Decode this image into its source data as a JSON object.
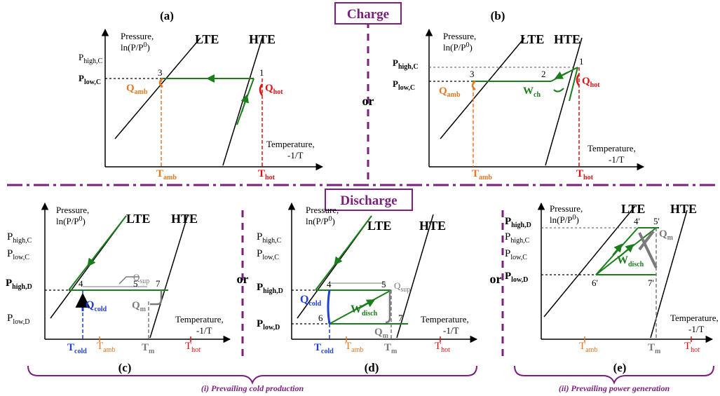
{
  "headers": {
    "charge": "Charge",
    "discharge": "Discharge",
    "or": "or"
  },
  "captions": {
    "cold": "(i) Prevailing cold production",
    "power": "(ii) Prevailing power generation"
  },
  "axis": {
    "pressure": "Pressure,",
    "pressure_unit": "ln(P/P",
    "pressure_sup": "0",
    "pressure_close": ")",
    "temperature": "Temperature,",
    "temperature_unit": "-1/T"
  },
  "lines": {
    "lte": "LTE",
    "hte": "HTE"
  },
  "panels": {
    "a": {
      "title": "(a)",
      "p_high": "P",
      "p_high_sub": "high,C",
      "p_low": "P",
      "p_low_sub": "low,C",
      "q_amb": "Q",
      "q_amb_sub": "amb",
      "q_hot": "Q",
      "q_hot_sub": "hot",
      "t_amb": "T",
      "t_amb_sub": "amb",
      "t_hot": "T",
      "t_hot_sub": "hot",
      "pt1": "1",
      "pt3": "3"
    },
    "b": {
      "title": "(b)",
      "p_high": "P",
      "p_high_sub": "high,C",
      "p_low": "P",
      "p_low_sub": "low,C",
      "q_amb": "Q",
      "q_amb_sub": "amb",
      "q_hot": "Q",
      "q_hot_sub": "hot",
      "w_ch": "W",
      "w_ch_sub": "ch",
      "t_amb": "T",
      "t_amb_sub": "amb",
      "t_hot": "T",
      "t_hot_sub": "hot",
      "pt1": "1",
      "pt2": "2",
      "pt3": "3"
    },
    "c": {
      "title": "(c)",
      "p_high_c": "P",
      "p_high_c_sub": "high,C",
      "p_low_c": "P",
      "p_low_c_sub": "low,C",
      "p_high_d": "P",
      "p_high_d_sub": "high,D",
      "p_low_d": "P",
      "p_low_d_sub": "low,D",
      "q_cold": "Q",
      "q_cold_sub": "cold",
      "q_sup": "Q",
      "q_sup_sub": "sup",
      "q_m": "Q",
      "q_m_sub": "m",
      "t_cold": "T",
      "t_cold_sub": "cold",
      "t_amb": "T",
      "t_amb_sub": "amb",
      "t_m": "T",
      "t_m_sub": "m",
      "t_hot": "T",
      "t_hot_sub": "hot",
      "pt4": "4",
      "pt5": "5",
      "pt7": "7"
    },
    "d": {
      "title": "(d)",
      "p_high_c": "P",
      "p_high_c_sub": "high,C",
      "p_low_c": "P",
      "p_low_c_sub": "low,C",
      "p_high_d": "P",
      "p_high_d_sub": "high,D",
      "p_low_d": "P",
      "p_low_d_sub": "low,D",
      "q_cold": "Q",
      "q_cold_sub": "cold",
      "q_sup": "Q",
      "q_sup_sub": "sup",
      "q_m": "Q",
      "q_m_sub": "m",
      "w_disch": "W",
      "w_disch_sub": "disch",
      "t_cold": "T",
      "t_cold_sub": "cold",
      "t_amb": "T",
      "t_amb_sub": "amb",
      "t_m": "T",
      "t_m_sub": "m",
      "t_hot": "T",
      "t_hot_sub": "hot",
      "pt4": "4",
      "pt5": "5",
      "pt6": "6",
      "pt7": "7"
    },
    "e": {
      "title": "(e)",
      "p_high_d": "P",
      "p_high_d_sub": "high,D",
      "p_high_c": "P",
      "p_high_c_sub": "high,C",
      "p_low_c": "P",
      "p_low_c_sub": "low,C",
      "p_low_d": "P",
      "p_low_d_sub": "low,D",
      "q_m": "Q",
      "q_m_sub": "m",
      "w_disch": "W",
      "w_disch_sub": "disch",
      "t_amb": "T",
      "t_amb_sub": "amb",
      "t_m": "T",
      "t_m_sub": "m",
      "t_hot": "T",
      "t_hot_sub": "hot",
      "pt4p": "4'",
      "pt5p": "5'",
      "pt6p": "6'",
      "pt7p": "7'"
    }
  },
  "colors": {
    "purple": "#7b1f7e",
    "green": "#1b7d1b",
    "orange": "#e87722",
    "red": "#d11111",
    "blue": "#1f3fd8",
    "grey": "#7a7a7a"
  }
}
